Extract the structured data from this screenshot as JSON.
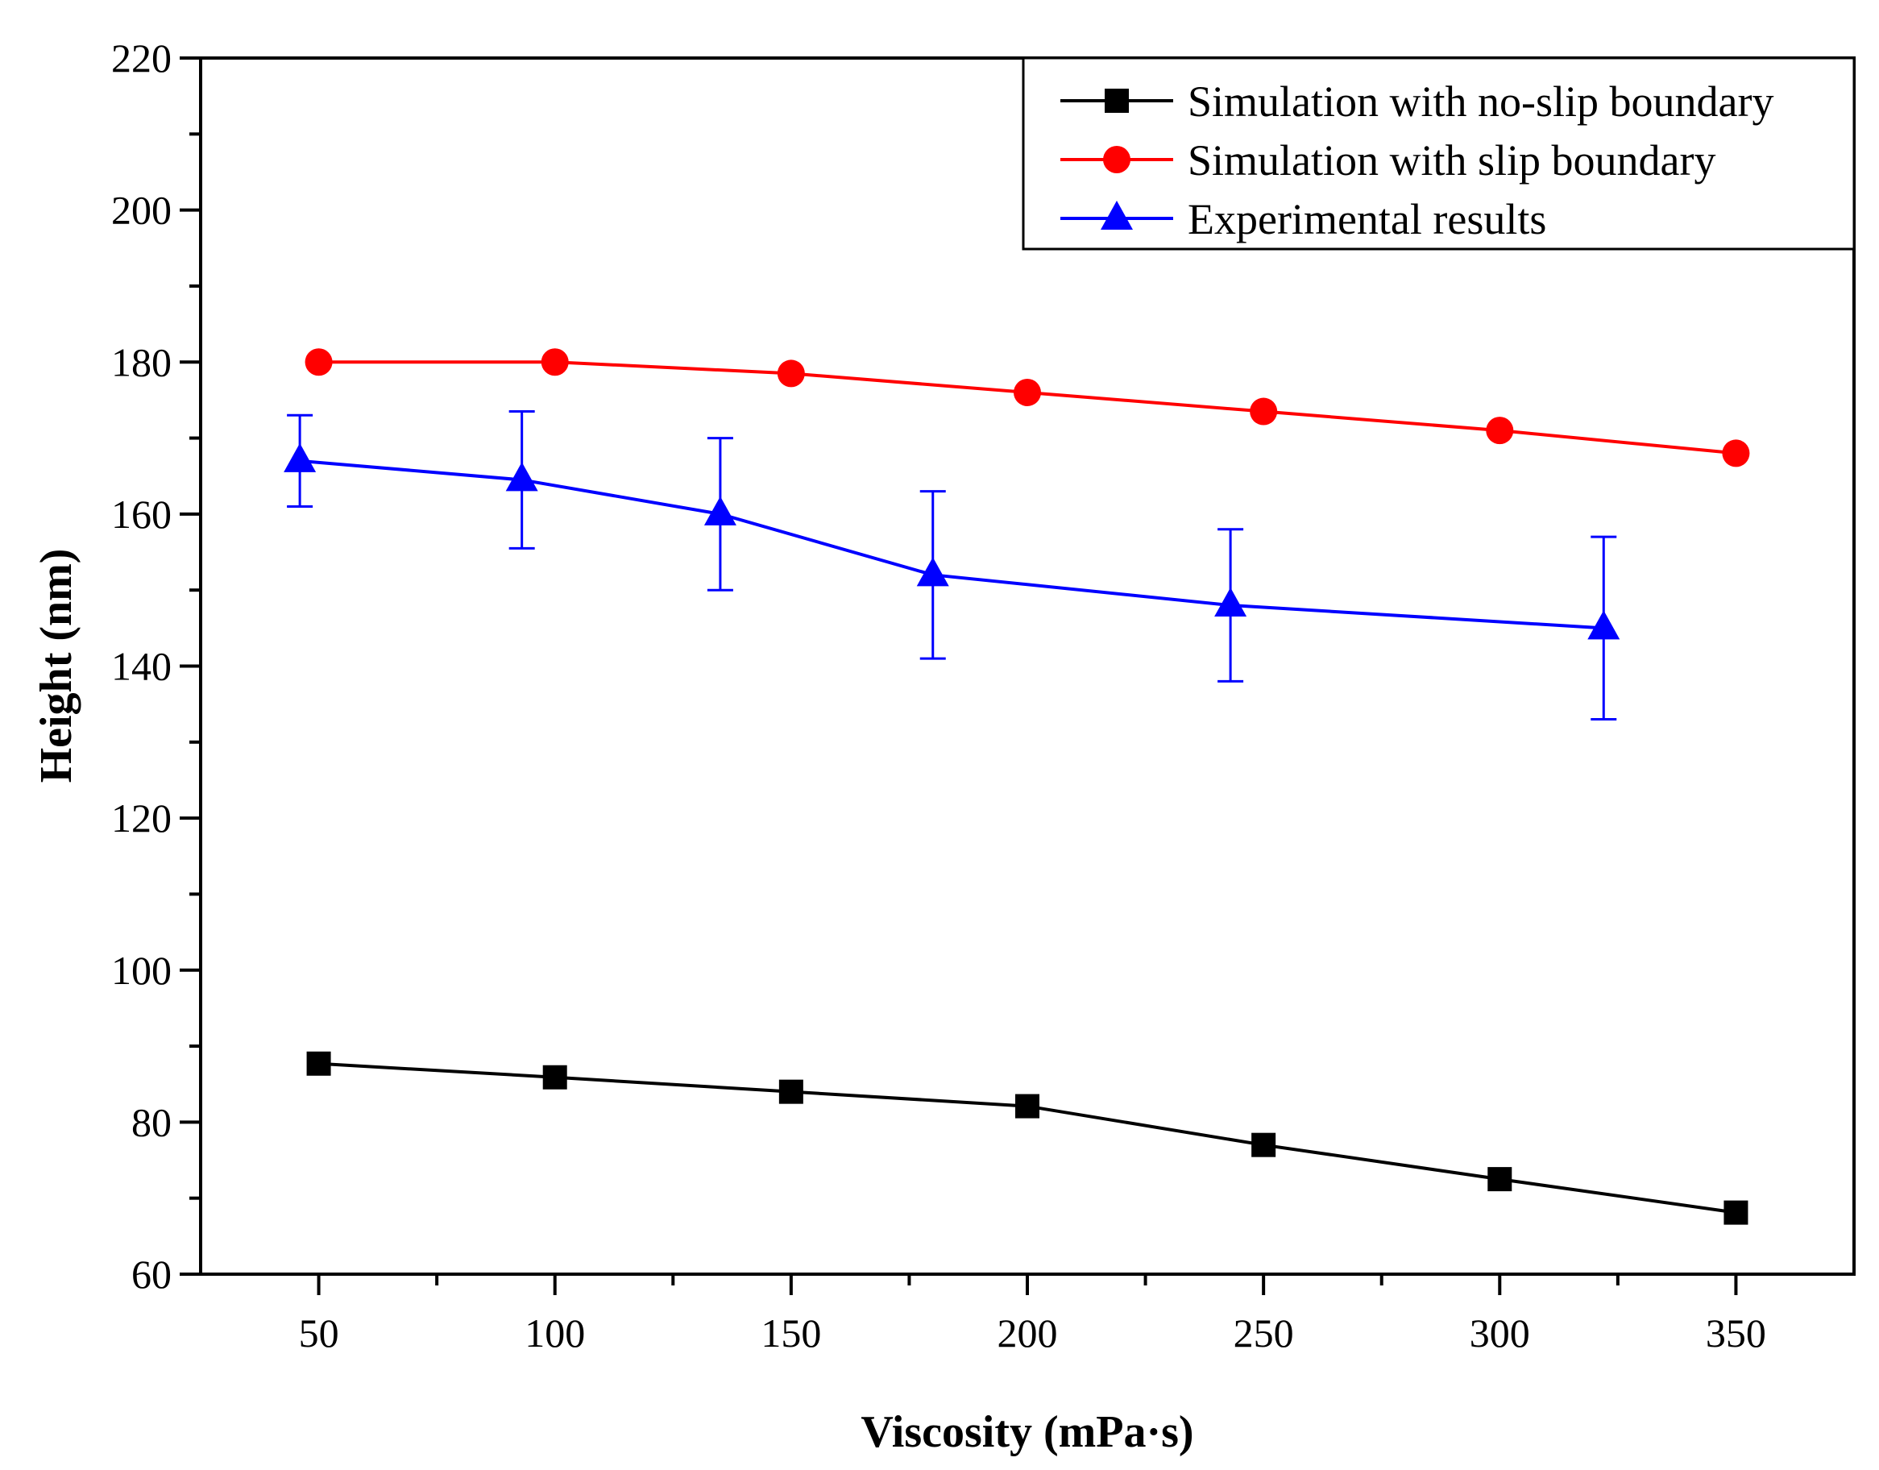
{
  "chart_data": {
    "type": "line",
    "title": "",
    "xlabel": "Viscosity (mPa·s)",
    "ylabel": "Height (nm)",
    "xlim": [
      25,
      375
    ],
    "ylim": [
      60,
      220
    ],
    "x_ticks": [
      50,
      100,
      150,
      200,
      250,
      300,
      350
    ],
    "y_ticks": [
      60,
      80,
      100,
      120,
      140,
      160,
      180,
      200,
      220
    ],
    "grid": false,
    "legend_position": "top-right",
    "series": [
      {
        "name": "Simulation with no-slip boundary",
        "color": "#000000",
        "marker": "square",
        "x": [
          50,
          100,
          150,
          200,
          250,
          300,
          350
        ],
        "y": [
          87.7,
          85.9,
          84.0,
          82.1,
          77.0,
          72.5,
          68.1
        ]
      },
      {
        "name": "Simulation with slip boundary",
        "color": "#ff0000",
        "marker": "circle",
        "x": [
          50,
          100,
          150,
          200,
          250,
          300,
          350
        ],
        "y": [
          180.0,
          180.0,
          178.5,
          176.0,
          173.5,
          171.0,
          168.0
        ]
      },
      {
        "name": "Experimental results",
        "color": "#0000ff",
        "marker": "triangle",
        "x": [
          46,
          93,
          135,
          180,
          243,
          322
        ],
        "y": [
          167.0,
          164.5,
          160.0,
          152.0,
          148.0,
          145.0
        ],
        "y_upper": [
          173.0,
          173.5,
          170.0,
          163.0,
          158.0,
          157.0
        ],
        "y_lower": [
          161.0,
          155.5,
          150.0,
          141.0,
          138.0,
          133.0
        ]
      }
    ]
  }
}
